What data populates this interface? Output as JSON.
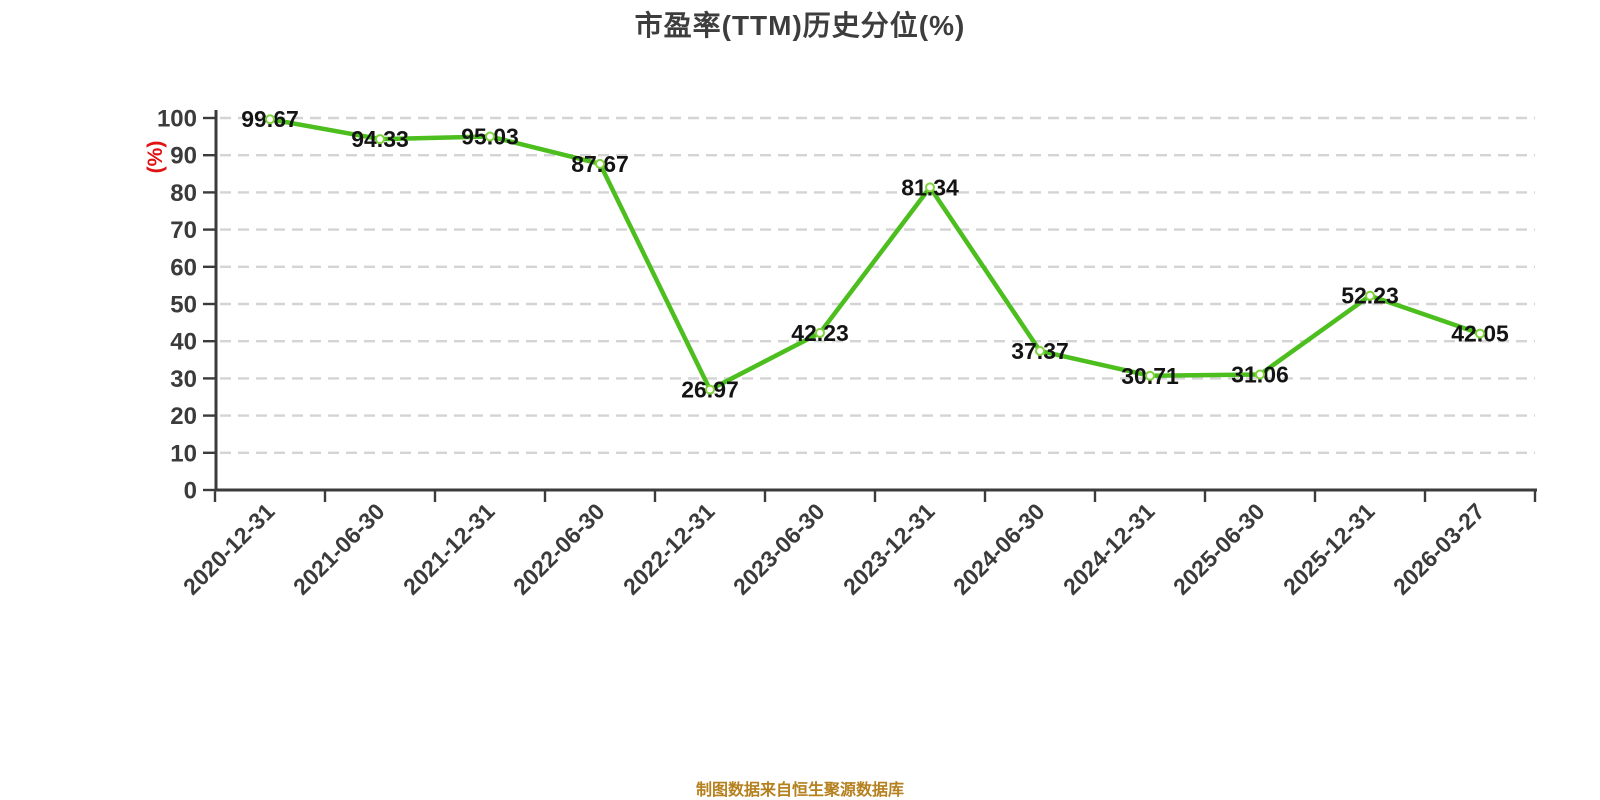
{
  "chart_data": {
    "type": "line",
    "title": "市盈率(TTM)历史分位(%)",
    "ylabel": "(%)",
    "xlabel": "",
    "categories": [
      "2020-12-31",
      "2021-06-30",
      "2021-12-31",
      "2022-06-30",
      "2022-12-31",
      "2023-06-30",
      "2023-12-31",
      "2024-06-30",
      "2024-12-31",
      "2025-06-30",
      "2025-12-31",
      "2026-03-27"
    ],
    "values": [
      99.67,
      94.33,
      95.03,
      87.67,
      26.97,
      42.23,
      81.34,
      37.37,
      30.71,
      31.06,
      52.23,
      42.05
    ],
    "ylim": [
      0,
      100
    ],
    "y_ticks": [
      0,
      10,
      20,
      30,
      40,
      50,
      60,
      70,
      80,
      90,
      100
    ],
    "grid": "horizontal dashed lines at each y tick",
    "legend": "none",
    "data_labels": true,
    "point_style": "white circle with green ring drawn over label text",
    "x_label_rotation_deg": -45,
    "source_note": "制图数据来自恒生聚源数据库",
    "colors": {
      "line": "#4cbe1e",
      "marker_ring": "#7fd43c",
      "marker_fill": "#ffffff",
      "grid": "#d4d4d4",
      "axis": "#3b3b3b",
      "tick_label": "#3b3b3b",
      "data_label": "#141414",
      "title": "#3d3d3d",
      "ylabel": "#e01212",
      "footer": "#b5801e"
    }
  }
}
